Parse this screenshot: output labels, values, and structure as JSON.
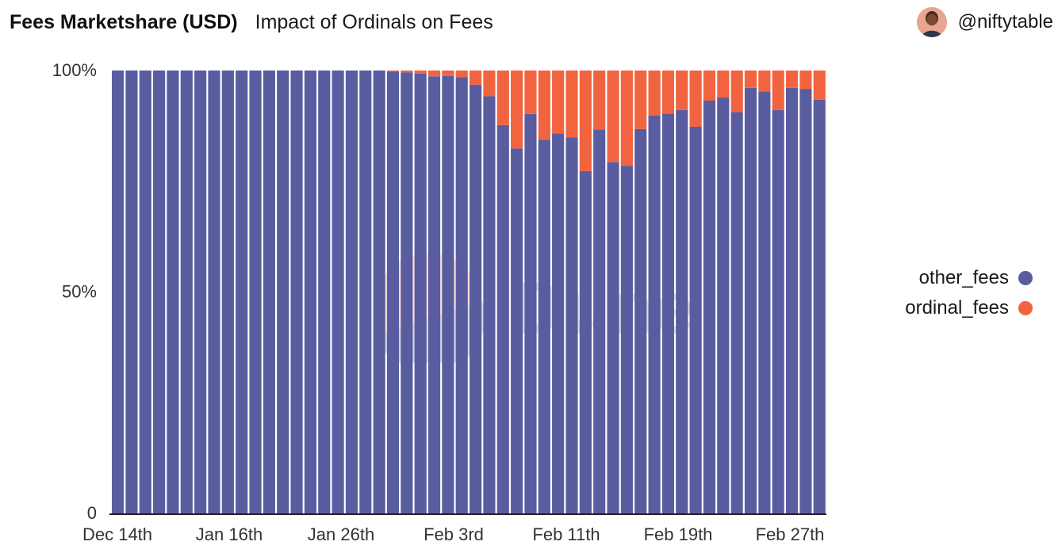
{
  "header": {
    "title": "Fees Marketshare (USD)",
    "subtitle": "Impact of Ordinals on Fees"
  },
  "author": {
    "handle": "@niftytable",
    "avatar_icon": "user-avatar-icon"
  },
  "watermark": {
    "text": "Dune"
  },
  "legend": [
    {
      "name": "other_fees",
      "color": "#5a5ca0"
    },
    {
      "name": "ordinal_fees",
      "color": "#f26440"
    }
  ],
  "chart_data": {
    "type": "bar",
    "stacked": true,
    "normalized": true,
    "x_tick_labels": [
      "Dec 14th",
      "Jan 16th",
      "Jan 26th",
      "Feb 3rd",
      "Feb 11th",
      "Feb 19th",
      "Feb 27th"
    ],
    "y_tick_labels": [
      "100%",
      "50%",
      "0"
    ],
    "ylim": [
      0,
      100
    ],
    "legend_position": "right",
    "grid": false,
    "series": [
      {
        "name": "other_fees",
        "color": "#5a5ca0",
        "values": [
          100,
          100,
          100,
          100,
          100,
          100,
          100,
          100,
          100,
          100,
          100,
          100,
          100,
          100,
          100,
          100,
          100,
          100,
          100,
          100,
          99.8,
          99.6,
          99.3,
          98.7,
          98.8,
          98.5,
          96.8,
          94.2,
          87.7,
          82.4,
          90.2,
          84.4,
          85.8,
          84.9,
          77.3,
          86.7,
          79.3,
          78.5,
          86.8,
          89.8,
          90.3,
          91.1,
          87.3,
          93.2,
          93.9,
          90.6,
          96.1,
          95.3,
          91.1,
          96.1,
          95.8,
          93.4
        ]
      },
      {
        "name": "ordinal_fees",
        "color": "#f26440",
        "values": [
          0,
          0,
          0,
          0,
          0,
          0,
          0,
          0,
          0,
          0,
          0,
          0,
          0,
          0,
          0,
          0,
          0,
          0,
          0,
          0,
          0.2,
          0.4,
          0.7,
          1.3,
          1.2,
          1.5,
          3.2,
          5.8,
          12.3,
          17.6,
          9.8,
          15.6,
          14.2,
          15.1,
          22.7,
          13.3,
          20.7,
          21.5,
          13.2,
          10.2,
          9.7,
          8.9,
          12.7,
          6.8,
          6.1,
          9.4,
          3.9,
          4.7,
          8.9,
          3.9,
          4.2,
          6.6
        ]
      }
    ]
  }
}
